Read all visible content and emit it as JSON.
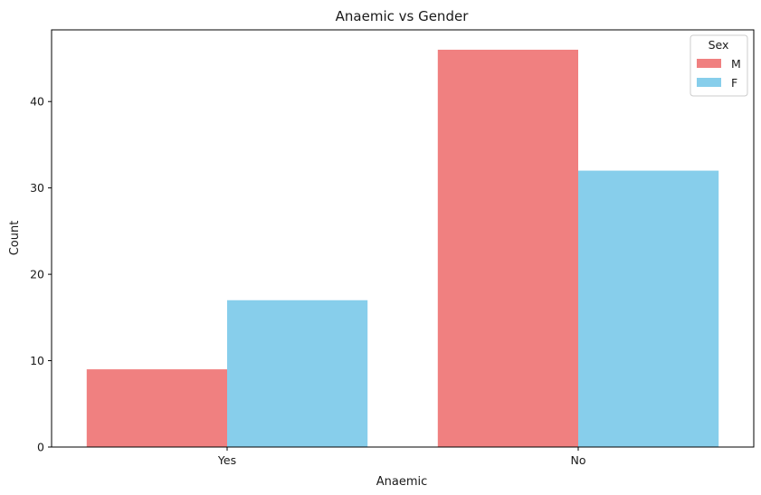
{
  "chart_data": {
    "type": "bar",
    "title": "Anaemic vs Gender",
    "xlabel": "Anaemic",
    "ylabel": "Count",
    "categories": [
      "Yes",
      "No"
    ],
    "series": [
      {
        "name": "M",
        "values": [
          9,
          46
        ],
        "color": "#f08080"
      },
      {
        "name": "F",
        "values": [
          17,
          32
        ],
        "color": "#87ceeb"
      }
    ],
    "ylim": [
      0,
      48.3
    ],
    "yticks": [
      "0",
      "10",
      "20",
      "30",
      "40"
    ],
    "grid": false,
    "legend": {
      "title": "Sex",
      "position": "top-right"
    }
  }
}
